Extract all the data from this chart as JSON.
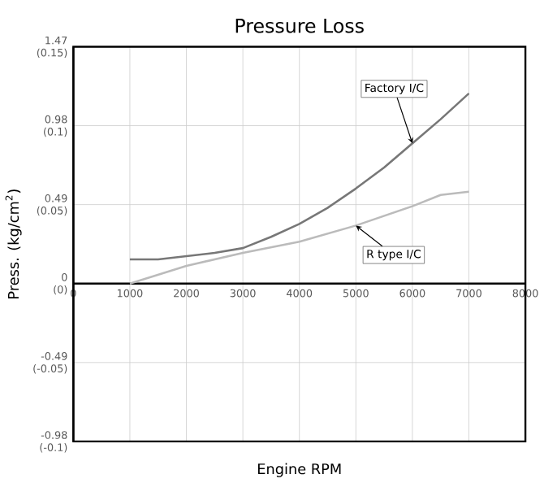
{
  "chart_data": {
    "type": "line",
    "title": "Pressure Loss",
    "xlabel": "Engine RPM",
    "y2label": "Press. (kg/cm$^{2}$)",
    "xlim": [
      0,
      8000
    ],
    "xticks": [
      0,
      1000,
      2000,
      3000,
      4000,
      5000,
      6000,
      7000,
      8000
    ],
    "ylim": [
      -0.98,
      1.47
    ],
    "yticks": [
      1.47,
      0.98,
      0.49,
      0,
      -0.49,
      -0.98
    ],
    "y2lim": [
      -0.1,
      0.15
    ],
    "y2ticks": [
      {
        "value": 0.15,
        "label": "(0.15)"
      },
      {
        "value": 0.1,
        "label": "(0.1)"
      },
      {
        "value": 0.05,
        "label": "(0.05)"
      },
      {
        "value": 0,
        "label": "(0)"
      },
      {
        "value": -0.05,
        "label": "(-0.05)"
      },
      {
        "value": -0.1,
        "label": "(-0.1)"
      }
    ],
    "grid": true,
    "legend": false,
    "series": [
      {
        "name": "Factory I/C",
        "color": "#777777",
        "x": [
          1000,
          1500,
          2000,
          2500,
          3000,
          3500,
          4000,
          4500,
          5000,
          5500,
          6000,
          6500,
          7000
        ],
        "values": [
          0.15,
          0.15,
          0.17,
          0.19,
          0.22,
          0.29,
          0.37,
          0.47,
          0.59,
          0.72,
          0.87,
          1.02,
          1.18
        ]
      },
      {
        "name": "R type I/C",
        "color": "#bbbbbb",
        "x": [
          1000,
          2000,
          3000,
          4000,
          5000,
          6000,
          6500,
          7000
        ],
        "values": [
          0,
          0.11,
          0.19,
          0.26,
          0.36,
          0.48,
          0.55,
          0.57
        ]
      }
    ]
  }
}
